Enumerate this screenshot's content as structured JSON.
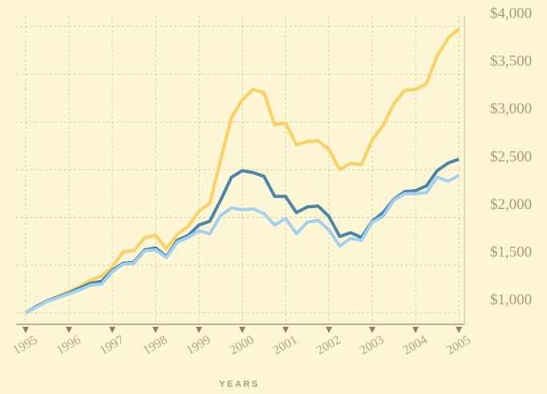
{
  "chart_data": {
    "type": "line",
    "x_label": "YEARS",
    "x": [
      1995,
      1995.25,
      1995.5,
      1995.75,
      1996,
      1996.25,
      1996.5,
      1996.75,
      1997,
      1997.25,
      1997.5,
      1997.75,
      1998,
      1998.25,
      1998.5,
      1998.75,
      1999,
      1999.25,
      1999.5,
      1999.75,
      2000,
      2000.25,
      2000.5,
      2000.75,
      2001,
      2001.25,
      2001.5,
      2001.75,
      2002,
      2002.25,
      2002.5,
      2002.75,
      2003,
      2003.25,
      2003.5,
      2003.75,
      2004,
      2004.25,
      2004.5,
      2004.75,
      2005
    ],
    "series": [
      {
        "color": "#fdd063",
        "values": [
          1000,
          1067,
          1126,
          1176,
          1226,
          1277,
          1344,
          1386,
          1478,
          1638,
          1654,
          1789,
          1814,
          1671,
          1822,
          1906,
          2065,
          2149,
          2602,
          3047,
          3232,
          3341,
          3307,
          2971,
          2988,
          2762,
          2795,
          2804,
          2711,
          2502,
          2568,
          2552,
          2812,
          2963,
          3190,
          3332,
          3341,
          3399,
          3693,
          3877,
          3978
        ]
      },
      {
        "color": "#4a86aa",
        "values": [
          1000,
          1067,
          1126,
          1168,
          1210,
          1260,
          1310,
          1330,
          1445,
          1520,
          1530,
          1660,
          1680,
          1590,
          1760,
          1810,
          1920,
          1960,
          2180,
          2420,
          2490,
          2470,
          2430,
          2220,
          2220,
          2050,
          2110,
          2120,
          2010,
          1800,
          1840,
          1790,
          1960,
          2050,
          2190,
          2270,
          2280,
          2330,
          2490,
          2570,
          2610
        ]
      },
      {
        "color": "#a3d0ef",
        "values": [
          1000,
          1060,
          1120,
          1160,
          1200,
          1240,
          1290,
          1300,
          1430,
          1510,
          1520,
          1650,
          1660,
          1580,
          1740,
          1790,
          1860,
          1830,
          2020,
          2100,
          2080,
          2090,
          2040,
          1920,
          1990,
          1830,
          1950,
          1970,
          1870,
          1700,
          1780,
          1760,
          1950,
          2010,
          2180,
          2250,
          2250,
          2260,
          2420,
          2380,
          2440
        ]
      }
    ],
    "xlim": [
      1995,
      2005
    ],
    "xticks": [
      1995,
      1996,
      1997,
      1998,
      1999,
      2000,
      2001,
      2002,
      2003,
      2004,
      2005
    ],
    "ylim": [
      880,
      4110
    ],
    "yticks": [
      {
        "value": 1000,
        "label": "$1,000"
      },
      {
        "value": 1500,
        "label": "$1,500"
      },
      {
        "value": 2000,
        "label": "$2,000"
      },
      {
        "value": 2500,
        "label": "$2,500"
      },
      {
        "value": 3000,
        "label": "$3,000"
      },
      {
        "value": 3500,
        "label": "$3,500"
      },
      {
        "value": 4000,
        "label": "$4,000"
      }
    ],
    "grid": true
  }
}
